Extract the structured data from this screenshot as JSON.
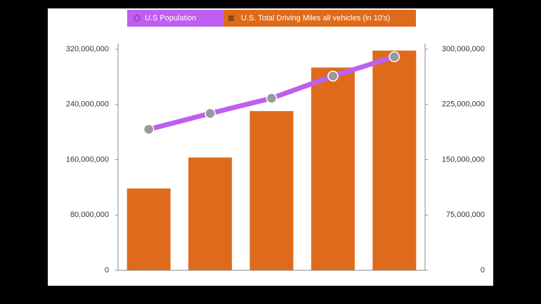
{
  "chart_data": {
    "type": "bar-line",
    "categories": [
      null,
      null,
      null,
      null,
      null
    ],
    "series": [
      {
        "name": "U.S Population",
        "type": "line",
        "color": "#bf5ff0",
        "axis": "y",
        "values": [
          204000000,
          227000000,
          249000000,
          281000000,
          309000000
        ]
      },
      {
        "name": "U.S. Total Driving Miles all vehicles (in 10's)",
        "type": "bar",
        "color": "#de6b1c",
        "axis": "y2",
        "values": [
          111000000,
          153000000,
          216000000,
          275000000,
          298000000
        ]
      }
    ],
    "ylim": [
      0,
      320000000
    ],
    "yticks": [
      0,
      {
        "value": 80000000,
        "label": "80,000,000"
      },
      {
        "value": 160000000,
        "label": "160,000,000"
      },
      {
        "value": 240000000,
        "label": "240,000,000"
      },
      {
        "value": 320000000,
        "label": "320,000,000"
      }
    ],
    "y2lim": [
      0,
      300000000
    ],
    "y2ticks": [
      0,
      {
        "value": 75000000,
        "label": "75,000,000"
      },
      {
        "value": 150000000,
        "label": "150,000,000"
      },
      {
        "value": 225000000,
        "label": "225,000,000"
      },
      {
        "value": 300000000,
        "label": "300,000,000"
      }
    ],
    "legend": "top"
  }
}
